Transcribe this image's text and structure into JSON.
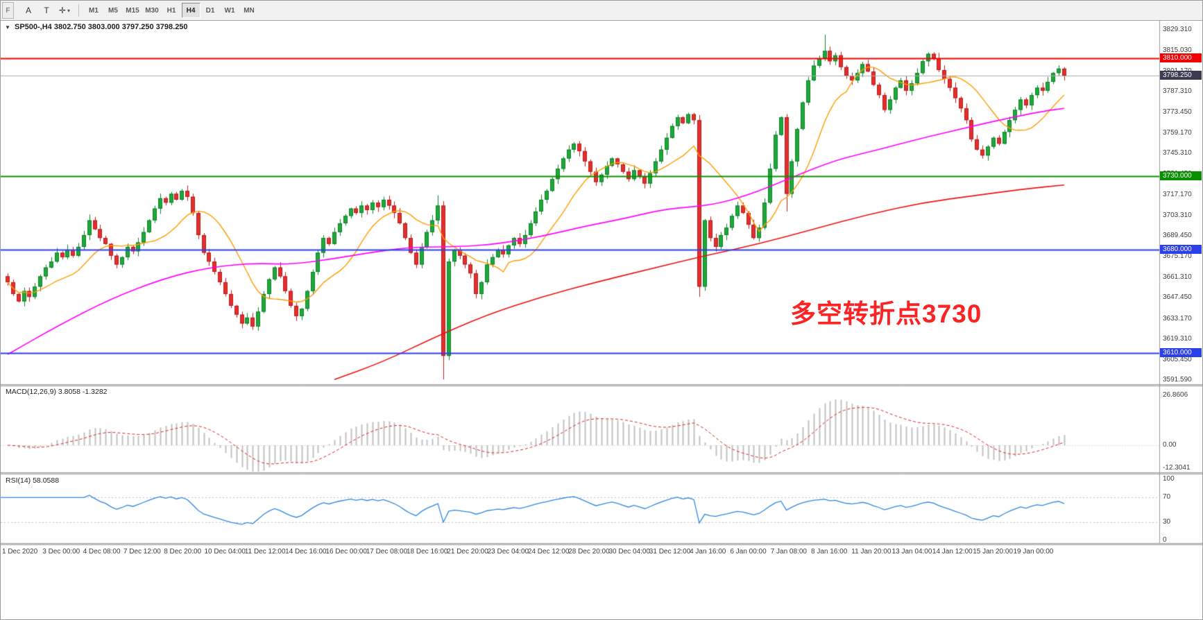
{
  "window": {
    "left_tab": "F"
  },
  "icons": {
    "chart_dropdown": "▼",
    "tool_dropdown": "▾"
  },
  "toolbar": {
    "tools": [
      {
        "name": "arrow-tool",
        "label": "A",
        "dropdown": false
      },
      {
        "name": "text-tool",
        "label": "T",
        "dropdown": false
      },
      {
        "name": "crosshair-tool",
        "label": "✛",
        "dropdown": true
      }
    ],
    "timeframes": [
      "M1",
      "M5",
      "M15",
      "M30",
      "H1",
      "H4",
      "D1",
      "W1",
      "MN"
    ],
    "active_timeframe": "H4"
  },
  "chart": {
    "title": {
      "symbol_period": "SP500-,H4",
      "ohlc": "3802.750 3803.000 3797.250 3798.250"
    },
    "annotation": {
      "text": "多空转折点3730",
      "color": "#fb2424"
    },
    "price_axis_labels": [
      "3829.310",
      "3815.030",
      "3801.170",
      "3787.310",
      "3773.450",
      "3759.170",
      "3745.310",
      "3731.450",
      "3717.170",
      "3703.310",
      "3689.450",
      "3675.170",
      "3661.310",
      "3647.450",
      "3633.170",
      "3619.310",
      "3605.450",
      "3591.590"
    ],
    "levels": [
      {
        "price": 3810.0,
        "label": "3810.000",
        "color": "#f20000",
        "type": "line"
      },
      {
        "price": 3798.25,
        "label": "3798.250",
        "color": "#3b3b52",
        "type": "current"
      },
      {
        "price": 3730.0,
        "label": "3730.000",
        "color": "#089000",
        "type": "line"
      },
      {
        "price": 3680.0,
        "label": "3680.000",
        "color": "#2b3fea",
        "type": "line"
      },
      {
        "price": 3610.0,
        "label": "3610.000",
        "color": "#2b3fea",
        "type": "line"
      }
    ],
    "time_axis_labels": [
      "1 Dec 2020",
      "3 Dec 00:00",
      "4 Dec 08:00",
      "7 Dec 12:00",
      "8 Dec 20:00",
      "10 Dec 04:00",
      "11 Dec 12:00",
      "14 Dec 16:00",
      "16 Dec 00:00",
      "17 Dec 08:00",
      "18 Dec 16:00",
      "21 Dec 20:00",
      "23 Dec 04:00",
      "24 Dec 12:00",
      "28 Dec 20:00",
      "30 Dec 04:00",
      "31 Dec 12:00",
      "4 Jan 16:00",
      "6 Jan 00:00",
      "7 Jan 08:00",
      "8 Jan 16:00",
      "11 Jan 20:00",
      "13 Jan 04:00",
      "14 Jan 12:00",
      "15 Jan 20:00",
      "19 Jan 00:00"
    ]
  },
  "indicators": {
    "macd": {
      "label": "MACD(12,26,9) 3.8058 -1.3282",
      "axis": [
        "26.8606",
        "0.00",
        "-12.3041"
      ]
    },
    "rsi": {
      "label": "RSI(14) 58.0588",
      "axis": [
        "100",
        "70",
        "30",
        "0"
      ],
      "levels": [
        70,
        30
      ]
    }
  },
  "chart_data": {
    "type": "candlestick",
    "symbol": "SP500-",
    "timeframe": "H4",
    "title": "SP500-,H4",
    "current_bar": {
      "open": 3802.75,
      "high": 3803.0,
      "low": 3797.25,
      "close": 3798.25
    },
    "ylim": [
      3591.59,
      3829.31
    ],
    "first_open": 3662,
    "closes": [
      3658,
      3650,
      3645,
      3652,
      3648,
      3655,
      3662,
      3668,
      3672,
      3678,
      3675,
      3680,
      3676,
      3682,
      3690,
      3700,
      3694,
      3688,
      3684,
      3676,
      3670,
      3675,
      3682,
      3679,
      3685,
      3692,
      3700,
      3708,
      3715,
      3712,
      3718,
      3714,
      3720,
      3716,
      3705,
      3690,
      3678,
      3672,
      3665,
      3658,
      3650,
      3642,
      3636,
      3630,
      3634,
      3628,
      3638,
      3650,
      3660,
      3668,
      3662,
      3652,
      3642,
      3635,
      3640,
      3652,
      3665,
      3678,
      3688,
      3684,
      3692,
      3698,
      3703,
      3708,
      3705,
      3710,
      3707,
      3712,
      3709,
      3714,
      3710,
      3705,
      3698,
      3688,
      3678,
      3670,
      3682,
      3692,
      3700,
      3710,
      3608,
      3672,
      3680,
      3676,
      3670,
      3664,
      3650,
      3658,
      3670,
      3675,
      3680,
      3677,
      3683,
      3688,
      3684,
      3690,
      3698,
      3706,
      3714,
      3720,
      3728,
      3735,
      3742,
      3748,
      3752,
      3747,
      3740,
      3733,
      3726,
      3731,
      3737,
      3742,
      3738,
      3733,
      3728,
      3734,
      3730,
      3725,
      3732,
      3740,
      3748,
      3756,
      3764,
      3770,
      3766,
      3772,
      3768,
      3655,
      3700,
      3688,
      3682,
      3690,
      3695,
      3703,
      3710,
      3705,
      3697,
      3688,
      3695,
      3712,
      3735,
      3758,
      3770,
      3718,
      3740,
      3762,
      3780,
      3795,
      3805,
      3810,
      3815,
      3808,
      3812,
      3804,
      3798,
      3795,
      3800,
      3806,
      3801,
      3792,
      3785,
      3775,
      3782,
      3790,
      3795,
      3788,
      3793,
      3800,
      3808,
      3813,
      3810,
      3802,
      3796,
      3790,
      3783,
      3776,
      3768,
      3755,
      3748,
      3744,
      3750,
      3756,
      3752,
      3760,
      3768,
      3775,
      3782,
      3778,
      3785,
      3790,
      3788,
      3794,
      3800,
      3803,
      3798.25
    ],
    "wick_overrides": {
      "15": {
        "high": 3704
      },
      "79": {
        "high": 3717
      },
      "80": {
        "low": 3592
      },
      "127": {
        "low": 3648
      },
      "143": {
        "low": 3706
      },
      "150": {
        "high": 3826
      }
    },
    "ma_mid_points": [
      [
        0,
        3609
      ],
      [
        9,
        3628
      ],
      [
        19,
        3647
      ],
      [
        29,
        3661
      ],
      [
        37,
        3668
      ],
      [
        45,
        3671
      ],
      [
        52,
        3670
      ],
      [
        60,
        3674
      ],
      [
        68,
        3679
      ],
      [
        75,
        3682
      ],
      [
        83,
        3682
      ],
      [
        90,
        3684
      ],
      [
        98,
        3689
      ],
      [
        106,
        3696
      ],
      [
        113,
        3701
      ],
      [
        121,
        3708
      ],
      [
        129,
        3710
      ],
      [
        136,
        3717
      ],
      [
        144,
        3729
      ],
      [
        152,
        3741
      ],
      [
        160,
        3748
      ],
      [
        167,
        3755
      ],
      [
        175,
        3762
      ],
      [
        182,
        3768
      ],
      [
        190,
        3774
      ],
      [
        194,
        3776
      ]
    ],
    "ma_slow_points": [
      [
        60,
        3592
      ],
      [
        69,
        3604
      ],
      [
        78,
        3620
      ],
      [
        88,
        3636
      ],
      [
        98,
        3648
      ],
      [
        108,
        3658
      ],
      [
        118,
        3667
      ],
      [
        128,
        3676
      ],
      [
        138,
        3684
      ],
      [
        148,
        3694
      ],
      [
        158,
        3704
      ],
      [
        168,
        3712
      ],
      [
        178,
        3717
      ],
      [
        186,
        3721
      ],
      [
        194,
        3724
      ]
    ],
    "macd_ylim": [
      -12.3041,
      26.8606
    ],
    "macd_current": {
      "macd": 3.8058,
      "signal": -1.3282
    },
    "rsi_ylim": [
      0,
      100
    ],
    "rsi_current": 58.0588,
    "colors": {
      "bull": "#1fa93c",
      "bull_border": "#0d7f26",
      "bear": "#e42f2f",
      "bear_border": "#b81c1c",
      "ma_fast": "#ff9c00",
      "ma_mid": "#ff00ff",
      "ma_slow": "#ee1111",
      "macd_hist": "#c0c0c0",
      "macd_signal": "#e02020",
      "rsi_line": "#2e86de",
      "price_line": "#ababab"
    }
  }
}
